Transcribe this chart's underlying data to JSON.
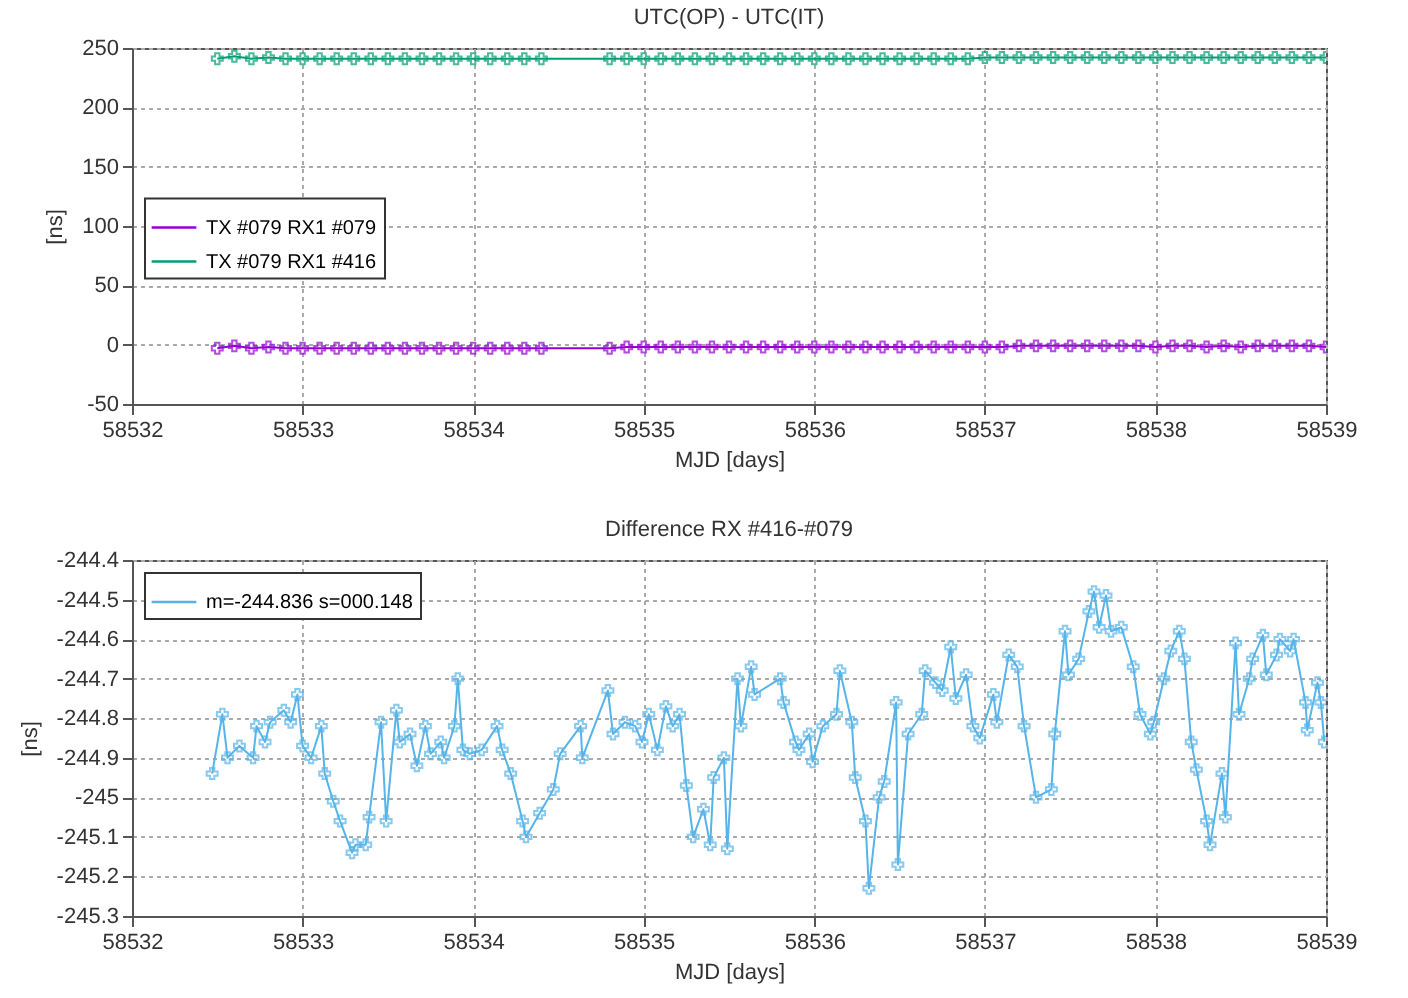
{
  "chart_data": [
    {
      "type": "line",
      "title": "UTC(OP) - UTC(IT)",
      "xlabel": "MJD [days]",
      "ylabel": "[ns]",
      "xlim": [
        58532,
        58539
      ],
      "xticks": [
        58532,
        58533,
        58534,
        58535,
        58536,
        58537,
        58538,
        58539
      ],
      "ylim": [
        -50,
        250
      ],
      "yticks": [
        -50,
        0,
        50,
        100,
        150,
        200,
        250
      ],
      "grid": true,
      "legend": "left",
      "marker": "cross",
      "line_style": "solid",
      "x": [
        58532.5,
        58532.6,
        58532.7,
        58532.8,
        58532.9,
        58533.0,
        58533.1,
        58533.2,
        58533.3,
        58533.4,
        58533.5,
        58533.6,
        58533.7,
        58533.8,
        58533.9,
        58534.0,
        58534.1,
        58534.2,
        58534.3,
        58534.4,
        58534.8,
        58534.9,
        58535.0,
        58535.1,
        58535.2,
        58535.3,
        58535.4,
        58535.5,
        58535.6,
        58535.7,
        58535.8,
        58535.9,
        58536.0,
        58536.1,
        58536.2,
        58536.3,
        58536.4,
        58536.5,
        58536.6,
        58536.7,
        58536.8,
        58536.9,
        58537.0,
        58537.1,
        58537.2,
        58537.3,
        58537.4,
        58537.5,
        58537.6,
        58537.7,
        58537.8,
        58537.9,
        58538.0,
        58538.1,
        58538.2,
        58538.3,
        58538.4,
        58538.5,
        58538.6,
        58538.7,
        58538.8,
        58538.9,
        58539.0
      ],
      "series": [
        {
          "name": "TX #079 RX1 #079",
          "color": "#9400d3",
          "values": [
            -3,
            -1,
            -3,
            -2,
            -3,
            -3,
            -3,
            -3,
            -3,
            -3,
            -3,
            -3,
            -3,
            -3,
            -3,
            -3,
            -3,
            -3,
            -3,
            -3,
            -3,
            -2,
            -2,
            -2,
            -2,
            -2,
            -2,
            -2,
            -2,
            -2,
            -2,
            -2,
            -2,
            -2,
            -2,
            -2,
            -2,
            -2,
            -2,
            -2,
            -2,
            -2,
            -2,
            -2,
            -1,
            -1,
            -1,
            -1,
            -1,
            -1,
            -1,
            -1,
            -2,
            -1,
            -1,
            -2,
            -1,
            -2,
            -1,
            -1,
            -1,
            -1,
            -2
          ]
        },
        {
          "name": "TX #079 RX1 #416",
          "color": "#009e73",
          "values": [
            241,
            243,
            241,
            242,
            241,
            241,
            241,
            241,
            241,
            241,
            241,
            241,
            241,
            241,
            241,
            241,
            241,
            241,
            241,
            241,
            241,
            241,
            241,
            241,
            241,
            241,
            241,
            241,
            241,
            241,
            241,
            241,
            241,
            241,
            241,
            241,
            241,
            241,
            241,
            241,
            241,
            241,
            242,
            242,
            242,
            242,
            242,
            242,
            242,
            242,
            242,
            242,
            242,
            242,
            242,
            242,
            242,
            242,
            242,
            242,
            242,
            242,
            242
          ]
        }
      ]
    },
    {
      "type": "line",
      "title": "Difference RX #416-#079",
      "xlabel": "MJD [days]",
      "ylabel": "[ns]",
      "xlim": [
        58532,
        58539
      ],
      "xticks": [
        58532,
        58533,
        58534,
        58535,
        58536,
        58537,
        58538,
        58539
      ],
      "ylim": [
        -245.3,
        -244.4
      ],
      "yticks": [
        -245.3,
        -245.2,
        -245.1,
        -245,
        -244.9,
        -244.8,
        -244.7,
        -244.6,
        -244.5,
        -244.4
      ],
      "grid": true,
      "legend": "top left",
      "marker": "cross",
      "line_style": "solid",
      "x": [
        58532.47,
        58532.53,
        58532.56,
        58532.63,
        58532.71,
        58532.73,
        58532.78,
        58532.81,
        58532.89,
        58532.93,
        58532.97,
        58533.0,
        58533.05,
        58533.11,
        58533.13,
        58533.18,
        58533.22,
        58533.29,
        58533.31,
        58533.37,
        58533.39,
        58533.46,
        58533.49,
        58533.55,
        58533.57,
        58533.63,
        58533.67,
        58533.72,
        58533.75,
        58533.81,
        58533.83,
        58533.89,
        58533.91,
        58533.94,
        58533.98,
        58534.05,
        58534.14,
        58534.17,
        58534.22,
        58534.29,
        58534.31,
        58534.39,
        58534.47,
        58534.51,
        58534.63,
        58534.64,
        58534.79,
        58534.82,
        58534.89,
        58534.95,
        58534.99,
        58535.03,
        58535.08,
        58535.13,
        58535.17,
        58535.21,
        58535.25,
        58535.29,
        58535.35,
        58535.39,
        58535.41,
        58535.47,
        58535.49,
        58535.55,
        58535.57,
        58535.63,
        58535.65,
        58535.8,
        58535.82,
        58535.89,
        58535.91,
        58535.97,
        58535.99,
        58536.05,
        58536.13,
        58536.15,
        58536.22,
        58536.24,
        58536.3,
        58536.32,
        58536.38,
        58536.41,
        58536.48,
        58536.49,
        58536.55,
        58536.63,
        58536.65,
        58536.71,
        58536.75,
        58536.8,
        58536.83,
        58536.89,
        58536.93,
        58536.97,
        58537.05,
        58537.07,
        58537.14,
        58537.19,
        58537.23,
        58537.3,
        58537.39,
        58537.41,
        58537.47,
        58537.49,
        58537.55,
        58537.61,
        58537.64,
        58537.67,
        58537.71,
        58537.74,
        58537.8,
        58537.87,
        58537.91,
        58537.97,
        58537.99,
        58538.05,
        58538.09,
        58538.14,
        58538.17,
        58538.21,
        58538.24,
        58538.3,
        58538.32,
        58538.39,
        58538.41,
        58538.47,
        58538.49,
        58538.55,
        58538.57,
        58538.63,
        58538.65,
        58538.71,
        58538.73,
        58538.79,
        58538.81,
        58538.88,
        58538.89,
        58538.95,
        58538.97,
        58538.99
      ],
      "series": [
        {
          "name": "m=-244.836 s=000.148",
          "color": "#56b4e9",
          "values": [
            -244.94,
            -244.79,
            -244.9,
            -244.87,
            -244.9,
            -244.82,
            -244.86,
            -244.81,
            -244.78,
            -244.81,
            -244.74,
            -244.87,
            -244.9,
            -244.82,
            -244.94,
            -245.01,
            -245.06,
            -245.14,
            -245.12,
            -245.12,
            -245.05,
            -244.81,
            -245.06,
            -244.78,
            -244.86,
            -244.84,
            -244.92,
            -244.82,
            -244.89,
            -244.86,
            -244.9,
            -244.82,
            -244.7,
            -244.88,
            -244.89,
            -244.88,
            -244.82,
            -244.88,
            -244.94,
            -245.06,
            -245.1,
            -245.04,
            -244.98,
            -244.89,
            -244.82,
            -244.9,
            -244.73,
            -244.84,
            -244.81,
            -244.82,
            -244.86,
            -244.79,
            -244.88,
            -244.77,
            -244.82,
            -244.79,
            -244.97,
            -245.1,
            -245.03,
            -245.12,
            -244.95,
            -244.9,
            -245.13,
            -244.7,
            -244.82,
            -244.67,
            -244.74,
            -244.7,
            -244.76,
            -244.86,
            -244.88,
            -244.84,
            -244.91,
            -244.82,
            -244.79,
            -244.68,
            -244.81,
            -244.95,
            -245.06,
            -245.23,
            -245.0,
            -244.96,
            -244.76,
            -245.17,
            -244.84,
            -244.79,
            -244.68,
            -244.71,
            -244.73,
            -244.62,
            -244.75,
            -244.69,
            -244.82,
            -244.85,
            -244.74,
            -244.81,
            -244.64,
            -244.67,
            -244.82,
            -245.0,
            -244.98,
            -244.84,
            -244.58,
            -244.69,
            -244.65,
            -244.53,
            -244.48,
            -244.57,
            -244.49,
            -244.58,
            -244.57,
            -244.67,
            -244.79,
            -244.84,
            -244.81,
            -244.7,
            -244.63,
            -244.58,
            -244.65,
            -244.86,
            -244.93,
            -245.06,
            -245.12,
            -244.94,
            -245.05,
            -244.61,
            -244.79,
            -244.7,
            -244.65,
            -244.59,
            -244.69,
            -244.64,
            -244.6,
            -244.63,
            -244.6,
            -244.76,
            -244.83,
            -244.71,
            -244.76,
            -244.86
          ]
        }
      ]
    }
  ]
}
